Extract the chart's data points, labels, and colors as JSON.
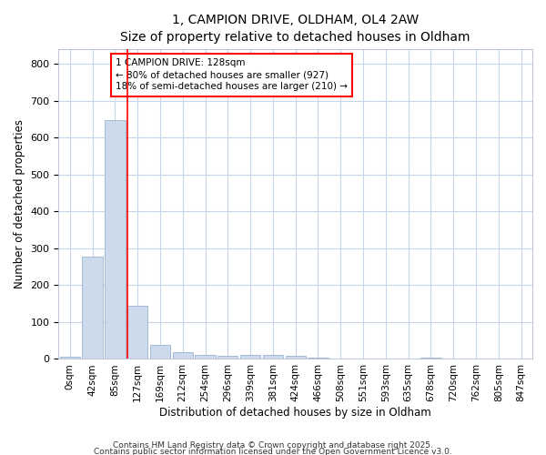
{
  "title1": "1, CAMPION DRIVE, OLDHAM, OL4 2AW",
  "title2": "Size of property relative to detached houses in Oldham",
  "xlabel": "Distribution of detached houses by size in Oldham",
  "ylabel": "Number of detached properties",
  "bar_labels": [
    "0sqm",
    "42sqm",
    "85sqm",
    "127sqm",
    "169sqm",
    "212sqm",
    "254sqm",
    "296sqm",
    "339sqm",
    "381sqm",
    "424sqm",
    "466sqm",
    "508sqm",
    "551sqm",
    "593sqm",
    "635sqm",
    "678sqm",
    "720sqm",
    "762sqm",
    "805sqm",
    "847sqm"
  ],
  "bar_values": [
    5,
    278,
    648,
    143,
    38,
    18,
    12,
    8,
    10,
    10,
    8,
    3,
    0,
    0,
    0,
    0,
    4,
    0,
    0,
    0,
    0
  ],
  "bar_color": "#ccdaec",
  "bar_edge_color": "#9ab4d4",
  "grid_color": "#c8d4e8",
  "bg_color": "#ffffff",
  "annotation_line1": "1 CAMPION DRIVE: 128sqm",
  "annotation_line2": "← 80% of detached houses are smaller (927)",
  "annotation_line3": "18% of semi-detached houses are larger (210) →",
  "ylim": [
    0,
    840
  ],
  "yticks": [
    0,
    100,
    200,
    300,
    400,
    500,
    600,
    700,
    800
  ],
  "footer1": "Contains HM Land Registry data © Crown copyright and database right 2025.",
  "footer2": "Contains public sector information licensed under the Open Government Licence v3.0."
}
